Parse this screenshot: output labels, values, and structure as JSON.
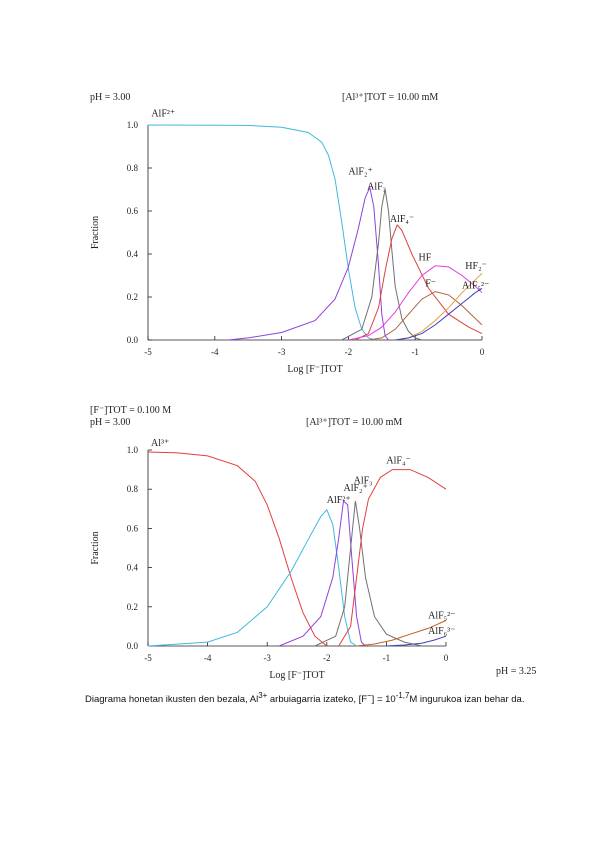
{
  "caption": {
    "text_before": "Diagrama honetan ikusten den bezala, Al",
    "sup1": "3+",
    "text_mid": " arbuiagarria izateko, [F",
    "sup2": "−",
    "text_mid2": "] = 10",
    "sup3": "-1,7",
    "text_after": "M ingurukoa izan behar da."
  },
  "chart_data": [
    {
      "type": "line",
      "header_left": "pH =  3.00",
      "header_right": "[Al³⁺]TOT =   10.00 mM",
      "header_extra": "",
      "ylabel": "Fraction",
      "xlabel": "Log [F⁻]TOT",
      "xlim": [
        -5,
        0
      ],
      "ylim": [
        0,
        1
      ],
      "x_ticks": [
        "-5",
        "-4",
        "-3",
        "-2",
        "-1",
        "0"
      ],
      "y_ticks": [
        "0.0",
        "0.2",
        "0.4",
        "0.6",
        "0.8",
        "1.0"
      ],
      "series": [
        {
          "name": "AlF²⁺",
          "color": "#40b8e0",
          "label_x": -4.95,
          "label_y": 1.04,
          "points": [
            [
              -5,
              1.0
            ],
            [
              -3.5,
              0.998
            ],
            [
              -3.0,
              0.99
            ],
            [
              -2.6,
              0.965
            ],
            [
              -2.4,
              0.92
            ],
            [
              -2.3,
              0.86
            ],
            [
              -2.2,
              0.75
            ],
            [
              -2.1,
              0.55
            ],
            [
              -2.0,
              0.33
            ],
            [
              -1.9,
              0.15
            ],
            [
              -1.8,
              0.05
            ],
            [
              -1.7,
              0.01
            ],
            [
              -1.6,
              0.0
            ]
          ]
        },
        {
          "name": "AlF₂⁺",
          "color": "#9040e0",
          "label_x": -2.0,
          "label_y": 0.77,
          "points": [
            [
              -3.8,
              0.0
            ],
            [
              -3.5,
              0.01
            ],
            [
              -3.0,
              0.035
            ],
            [
              -2.5,
              0.09
            ],
            [
              -2.2,
              0.19
            ],
            [
              -2.0,
              0.34
            ],
            [
              -1.85,
              0.52
            ],
            [
              -1.75,
              0.66
            ],
            [
              -1.68,
              0.71
            ],
            [
              -1.62,
              0.62
            ],
            [
              -1.55,
              0.35
            ],
            [
              -1.5,
              0.12
            ],
            [
              -1.45,
              0.02
            ],
            [
              -1.4,
              0.0
            ]
          ]
        },
        {
          "name": "AlF₃",
          "color": "#707070",
          "label_x": -1.72,
          "label_y": 0.7,
          "points": [
            [
              -2.1,
              0.0
            ],
            [
              -1.8,
              0.05
            ],
            [
              -1.65,
              0.2
            ],
            [
              -1.55,
              0.45
            ],
            [
              -1.5,
              0.62
            ],
            [
              -1.45,
              0.7
            ],
            [
              -1.4,
              0.6
            ],
            [
              -1.35,
              0.42
            ],
            [
              -1.3,
              0.25
            ],
            [
              -1.2,
              0.1
            ],
            [
              -1.1,
              0.04
            ],
            [
              -1.0,
              0.01
            ],
            [
              -0.9,
              0.0
            ]
          ]
        },
        {
          "name": "AlF₄⁻",
          "color": "#e04040",
          "label_x": -1.38,
          "label_y": 0.55,
          "points": [
            [
              -1.9,
              0.0
            ],
            [
              -1.7,
              0.03
            ],
            [
              -1.55,
              0.15
            ],
            [
              -1.45,
              0.32
            ],
            [
              -1.35,
              0.47
            ],
            [
              -1.27,
              0.535
            ],
            [
              -1.2,
              0.51
            ],
            [
              -1.05,
              0.4
            ],
            [
              -0.8,
              0.24
            ],
            [
              -0.5,
              0.12
            ],
            [
              -0.2,
              0.06
            ],
            [
              0.0,
              0.03
            ]
          ]
        },
        {
          "name": "HF",
          "color": "#e040e0",
          "label_x": -0.95,
          "label_y": 0.37,
          "points": [
            [
              -2.0,
              0.0
            ],
            [
              -1.7,
              0.02
            ],
            [
              -1.5,
              0.06
            ],
            [
              -1.3,
              0.13
            ],
            [
              -1.1,
              0.22
            ],
            [
              -0.9,
              0.3
            ],
            [
              -0.7,
              0.345
            ],
            [
              -0.5,
              0.34
            ],
            [
              -0.3,
              0.3
            ],
            [
              -0.1,
              0.25
            ],
            [
              0.0,
              0.22
            ]
          ]
        },
        {
          "name": "F⁻",
          "color": "#b06040",
          "label_x": -0.85,
          "label_y": 0.25,
          "points": [
            [
              -1.7,
              0.0
            ],
            [
              -1.5,
              0.01
            ],
            [
              -1.3,
              0.05
            ],
            [
              -1.1,
              0.12
            ],
            [
              -0.9,
              0.19
            ],
            [
              -0.7,
              0.225
            ],
            [
              -0.5,
              0.21
            ],
            [
              -0.3,
              0.16
            ],
            [
              -0.1,
              0.1
            ],
            [
              0.0,
              0.07
            ]
          ]
        },
        {
          "name": "HF₂⁻",
          "color": "#e0a040",
          "label_x": -0.25,
          "label_y": 0.33,
          "points": [
            [
              -1.3,
              0.0
            ],
            [
              -1.1,
              0.01
            ],
            [
              -0.9,
              0.04
            ],
            [
              -0.7,
              0.09
            ],
            [
              -0.5,
              0.15
            ],
            [
              -0.3,
              0.22
            ],
            [
              -0.1,
              0.28
            ],
            [
              0.0,
              0.31
            ]
          ]
        },
        {
          "name": "AlF₅²⁻",
          "color": "#4040c0",
          "label_x": -0.3,
          "label_y": 0.24,
          "points": [
            [
              -1.3,
              0.0
            ],
            [
              -1.1,
              0.01
            ],
            [
              -0.9,
              0.03
            ],
            [
              -0.7,
              0.07
            ],
            [
              -0.5,
              0.12
            ],
            [
              -0.3,
              0.17
            ],
            [
              -0.1,
              0.22
            ],
            [
              0.0,
              0.24
            ]
          ]
        }
      ]
    },
    {
      "type": "line",
      "header_left": "pH =  3.00",
      "header_right": "[Al³⁺]TOT =   10.00 mM",
      "header_extra": "[F⁻]TOT = 0.100 M",
      "ylabel": "Fraction",
      "xlabel": "Log [F⁻]TOT",
      "xlim": [
        -5,
        0
      ],
      "ylim": [
        0,
        1
      ],
      "x_ticks": [
        "-5",
        "-4",
        "-3",
        "-2",
        "-1",
        "0"
      ],
      "y_ticks": [
        "0.0",
        "0.2",
        "0.4",
        "0.6",
        "0.8",
        "1.0"
      ],
      "corner_note": "pH = 3.25",
      "series": [
        {
          "name": "Al³⁺",
          "color": "#e04040",
          "label_x": -4.95,
          "label_y": 1.02,
          "points": [
            [
              -5,
              0.99
            ],
            [
              -4.5,
              0.985
            ],
            [
              -4.0,
              0.97
            ],
            [
              -3.5,
              0.92
            ],
            [
              -3.2,
              0.84
            ],
            [
              -3.0,
              0.72
            ],
            [
              -2.8,
              0.55
            ],
            [
              -2.6,
              0.35
            ],
            [
              -2.4,
              0.17
            ],
            [
              -2.2,
              0.05
            ],
            [
              -2.0,
              0.0
            ]
          ]
        },
        {
          "name": "AlF²⁺",
          "color": "#40b8e0",
          "label_x": -2.0,
          "label_y": 0.73,
          "points": [
            [
              -5,
              0.0
            ],
            [
              -4.0,
              0.02
            ],
            [
              -3.5,
              0.07
            ],
            [
              -3.0,
              0.2
            ],
            [
              -2.6,
              0.38
            ],
            [
              -2.3,
              0.55
            ],
            [
              -2.1,
              0.66
            ],
            [
              -2.0,
              0.695
            ],
            [
              -1.9,
              0.62
            ],
            [
              -1.8,
              0.4
            ],
            [
              -1.7,
              0.15
            ],
            [
              -1.6,
              0.02
            ],
            [
              -1.5,
              0.0
            ]
          ]
        },
        {
          "name": "AlF₂⁺",
          "color": "#9040e0",
          "label_x": -1.72,
          "label_y": 0.79,
          "points": [
            [
              -2.8,
              0.0
            ],
            [
              -2.4,
              0.05
            ],
            [
              -2.1,
              0.15
            ],
            [
              -1.9,
              0.35
            ],
            [
              -1.8,
              0.55
            ],
            [
              -1.72,
              0.74
            ],
            [
              -1.65,
              0.72
            ],
            [
              -1.58,
              0.45
            ],
            [
              -1.5,
              0.15
            ],
            [
              -1.42,
              0.02
            ],
            [
              -1.35,
              0.0
            ]
          ]
        },
        {
          "name": "AlF₃",
          "color": "#707070",
          "label_x": -1.55,
          "label_y": 0.83,
          "points": [
            [
              -2.2,
              0.0
            ],
            [
              -1.85,
              0.05
            ],
            [
              -1.7,
              0.2
            ],
            [
              -1.6,
              0.5
            ],
            [
              -1.52,
              0.74
            ],
            [
              -1.45,
              0.6
            ],
            [
              -1.35,
              0.35
            ],
            [
              -1.2,
              0.15
            ],
            [
              -1.0,
              0.06
            ],
            [
              -0.7,
              0.02
            ],
            [
              -0.4,
              0.0
            ]
          ]
        },
        {
          "name": "AlF₄⁻",
          "color": "#e04040",
          "label_x": -1.0,
          "label_y": 0.93,
          "points": [
            [
              -1.8,
              0.0
            ],
            [
              -1.6,
              0.1
            ],
            [
              -1.5,
              0.35
            ],
            [
              -1.4,
              0.6
            ],
            [
              -1.3,
              0.75
            ],
            [
              -1.1,
              0.86
            ],
            [
              -0.9,
              0.9
            ],
            [
              -0.6,
              0.9
            ],
            [
              -0.3,
              0.86
            ],
            [
              0.0,
              0.8
            ]
          ]
        },
        {
          "name": "AlF₅²⁻",
          "color": "#c06020",
          "label_x": -0.3,
          "label_y": 0.14,
          "points": [
            [
              -1.5,
              0.0
            ],
            [
              -1.2,
              0.01
            ],
            [
              -0.9,
              0.03
            ],
            [
              -0.6,
              0.06
            ],
            [
              -0.3,
              0.09
            ],
            [
              0.0,
              0.13
            ]
          ]
        },
        {
          "name": "AlF₆³⁻",
          "color": "#4040c0",
          "label_x": -0.3,
          "label_y": 0.06,
          "points": [
            [
              -1.0,
              0.0
            ],
            [
              -0.7,
              0.005
            ],
            [
              -0.4,
              0.015
            ],
            [
              -0.2,
              0.03
            ],
            [
              0.0,
              0.05
            ]
          ]
        }
      ]
    }
  ]
}
